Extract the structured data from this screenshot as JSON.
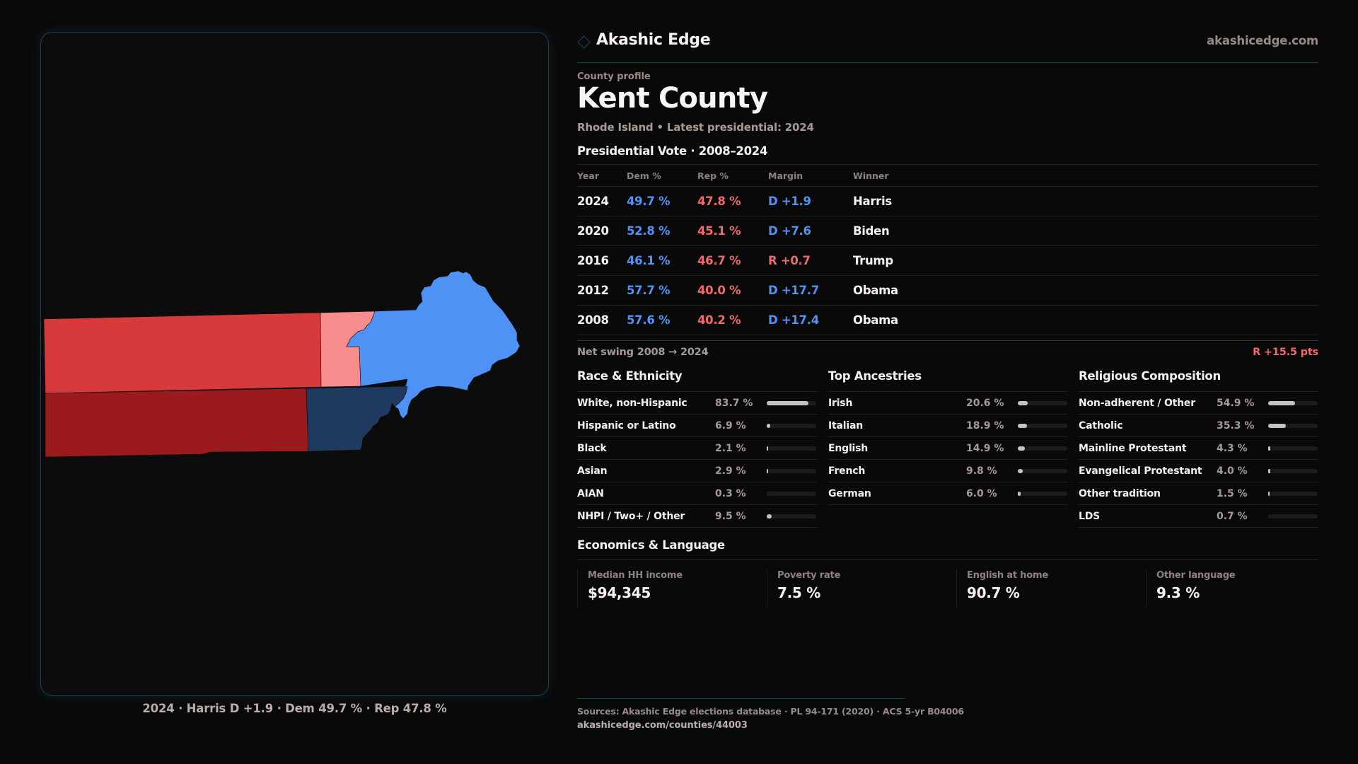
{
  "brand": {
    "name": "Akashic Edge",
    "url": "akashicedge.com",
    "icon": "diamond-icon"
  },
  "profile": {
    "eyebrow": "County profile",
    "title": "Kent County",
    "subtitle": "Rhode Island • Latest presidential: 2024"
  },
  "presidential": {
    "title": "Presidential Vote · 2008–2024",
    "columns": [
      "Year",
      "Dem %",
      "Rep %",
      "Margin",
      "Winner"
    ],
    "rows": [
      {
        "year": "2024",
        "dem": "49.7 %",
        "rep": "47.8 %",
        "margin": "D +1.9",
        "party": "D",
        "winner": "Harris"
      },
      {
        "year": "2020",
        "dem": "52.8 %",
        "rep": "45.1 %",
        "margin": "D +7.6",
        "party": "D",
        "winner": "Biden"
      },
      {
        "year": "2016",
        "dem": "46.1 %",
        "rep": "46.7 %",
        "margin": "R +0.7",
        "party": "R",
        "winner": "Trump"
      },
      {
        "year": "2012",
        "dem": "57.7 %",
        "rep": "40.0 %",
        "margin": "D +17.7",
        "party": "D",
        "winner": "Obama"
      },
      {
        "year": "2008",
        "dem": "57.6 %",
        "rep": "40.2 %",
        "margin": "D +17.4",
        "party": "D",
        "winner": "Obama"
      }
    ],
    "swing_label": "Net swing 2008 → 2024",
    "swing_value": "R +15.5 pts"
  },
  "race": {
    "title": "Race & Ethnicity",
    "items": [
      {
        "label": "White, non-Hispanic",
        "value": "83.7 %",
        "pct": 83.7
      },
      {
        "label": "Hispanic or Latino",
        "value": "6.9 %",
        "pct": 6.9
      },
      {
        "label": "Black",
        "value": "2.1 %",
        "pct": 2.1
      },
      {
        "label": "Asian",
        "value": "2.9 %",
        "pct": 2.9
      },
      {
        "label": "AIAN",
        "value": "0.3 %",
        "pct": 0.3
      },
      {
        "label": "NHPI / Two+ / Other",
        "value": "9.5 %",
        "pct": 9.5
      }
    ]
  },
  "ancestry": {
    "title": "Top Ancestries",
    "items": [
      {
        "label": "Irish",
        "value": "20.6 %",
        "pct": 20.6
      },
      {
        "label": "Italian",
        "value": "18.9 %",
        "pct": 18.9
      },
      {
        "label": "English",
        "value": "14.9 %",
        "pct": 14.9
      },
      {
        "label": "French",
        "value": "9.8 %",
        "pct": 9.8
      },
      {
        "label": "German",
        "value": "6.0 %",
        "pct": 6.0
      }
    ]
  },
  "religion": {
    "title": "Religious Composition",
    "items": [
      {
        "label": "Non-adherent / Other",
        "value": "54.9 %",
        "pct": 54.9
      },
      {
        "label": "Catholic",
        "value": "35.3 %",
        "pct": 35.3
      },
      {
        "label": "Mainline Protestant",
        "value": "4.3 %",
        "pct": 4.3
      },
      {
        "label": "Evangelical Protestant",
        "value": "4.0 %",
        "pct": 4.0
      },
      {
        "label": "Other tradition",
        "value": "1.5 %",
        "pct": 1.5
      },
      {
        "label": "LDS",
        "value": "0.7 %",
        "pct": 0.7
      }
    ]
  },
  "economics": {
    "title": "Economics & Language",
    "stats": [
      {
        "label": "Median HH income",
        "value": "$94,345"
      },
      {
        "label": "Poverty rate",
        "value": "7.5 %"
      },
      {
        "label": "English at home",
        "value": "90.7 %"
      },
      {
        "label": "Other language",
        "value": "9.3 %"
      }
    ]
  },
  "map": {
    "caption": "2024 · Harris D +1.9 · Dem 49.7 % · Rep 47.8 %",
    "colors": {
      "strong_rep": "#9a1a1e",
      "rep": "#d63a3a",
      "lean_rep": "#f68c8c",
      "dem": "#4f92f5",
      "strong_dem": "#1f3a5f"
    }
  },
  "footer": {
    "sources": "Sources: Akashic Edge elections database · PL 94-171 (2020) · ACS 5-yr B04006",
    "url": "akashicedge.com/counties/44003"
  }
}
